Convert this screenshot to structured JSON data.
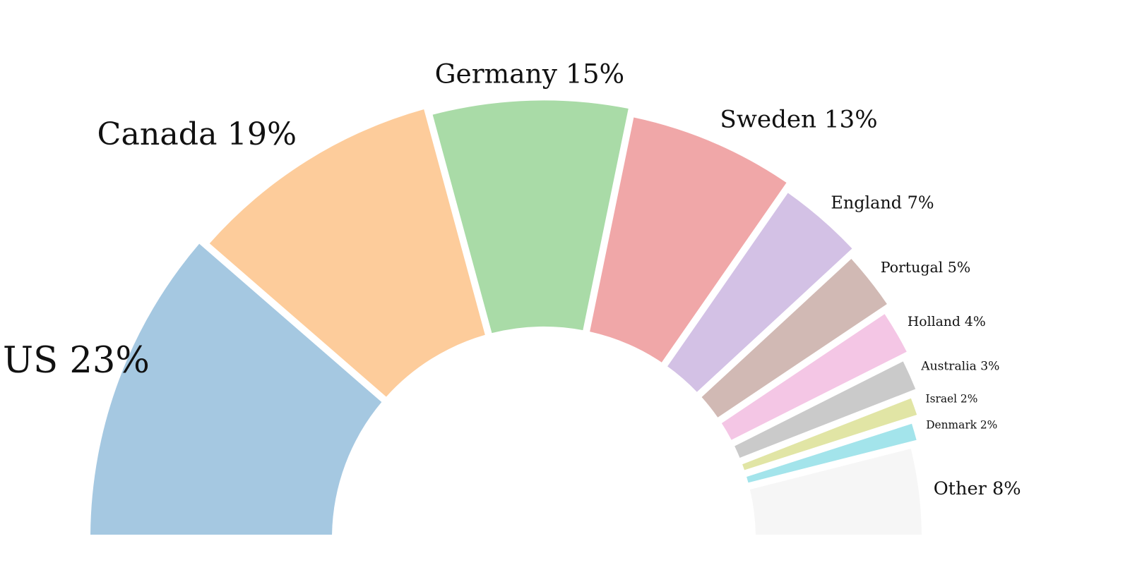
{
  "chart_data": {
    "type": "pie",
    "subtype": "half-donut",
    "slices": [
      {
        "label": "US 23%",
        "value": 23,
        "color": "#a5c8e1"
      },
      {
        "label": "Canada 19%",
        "value": 19,
        "color": "#fdcc9b"
      },
      {
        "label": "Germany 15%",
        "value": 15,
        "color": "#a9dba7"
      },
      {
        "label": "Sweden 13%",
        "value": 13,
        "color": "#f0a7a8"
      },
      {
        "label": "England 7%",
        "value": 7,
        "color": "#d3c1e5"
      },
      {
        "label": "Portugal 5%",
        "value": 5,
        "color": "#d1b9b4"
      },
      {
        "label": "Holland 4%",
        "value": 4,
        "color": "#f4c6e5"
      },
      {
        "label": "Australia 3%",
        "value": 3,
        "color": "#cacaca"
      },
      {
        "label": "Israel 2%",
        "value": 2,
        "color": "#e1e5a5"
      },
      {
        "label": "Denmark 2%",
        "value": 2,
        "color": "#a3e4eb"
      },
      {
        "label": "Other 8%",
        "value": 8,
        "color": "#f6f6f6"
      }
    ]
  }
}
